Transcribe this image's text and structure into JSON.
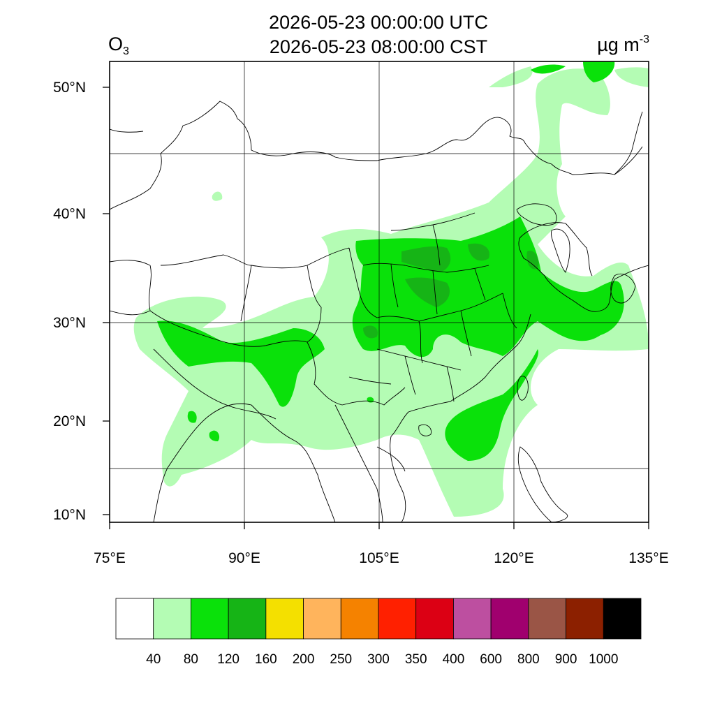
{
  "title": {
    "utc": "2026-05-23 00:00:00 UTC",
    "cst": "2026-05-23 08:00:00 CST"
  },
  "variable": {
    "base": "O",
    "sub": "3"
  },
  "units": {
    "base": "µg m",
    "sup": "-3"
  },
  "map": {
    "lon_range": [
      75,
      135
    ],
    "lat_range": [
      9,
      52.5
    ],
    "lon_ticks": [
      {
        "value": 75,
        "label": "75°E"
      },
      {
        "value": 90,
        "label": "90°E"
      },
      {
        "value": 105,
        "label": "105°E"
      },
      {
        "value": 120,
        "label": "120°E"
      },
      {
        "value": 135,
        "label": "135°E"
      }
    ],
    "lat_ticks": [
      {
        "value": 10,
        "label": "10°N"
      },
      {
        "value": 20,
        "label": "20°N"
      },
      {
        "value": 30,
        "label": "30°N"
      },
      {
        "value": 40,
        "label": "40°N"
      },
      {
        "value": 50,
        "label": "50°N"
      }
    ],
    "grid": true
  },
  "colorbar": {
    "colors": [
      "#ffffff",
      "#b4fcb4",
      "#0ae10a",
      "#16b416",
      "#f4e000",
      "#ffb45c",
      "#f58200",
      "#ff2000",
      "#dc0014",
      "#bd4fa0",
      "#a0006e",
      "#9a5546",
      "#8c2000",
      "#000000"
    ],
    "labels": [
      "40",
      "80",
      "120",
      "160",
      "200",
      "250",
      "300",
      "350",
      "400",
      "600",
      "800",
      "900",
      "1000"
    ]
  },
  "colors": {
    "level1": "#b4fcb4",
    "level2": "#0ae10a",
    "level3": "#16b416"
  }
}
